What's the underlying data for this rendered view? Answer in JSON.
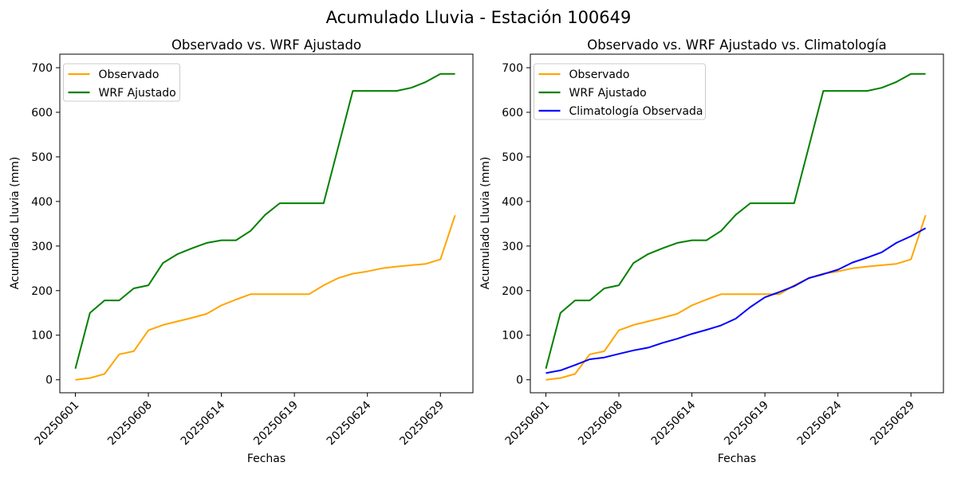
{
  "figure": {
    "suptitle": "Acumulado Lluvia - Estación 100649",
    "background_color": "#ffffff",
    "text_color": "#000000"
  },
  "chart_data": [
    {
      "type": "line",
      "title": "Observado vs. WRF Ajustado",
      "xlabel": "Fechas",
      "ylabel": "Acumulado Lluvia (mm)",
      "ylim": [
        0,
        700
      ],
      "yticks": [
        0,
        100,
        200,
        300,
        400,
        500,
        600,
        700
      ],
      "x_tick_positions": [
        0,
        5,
        10,
        15,
        20,
        25
      ],
      "x_tick_labels": [
        "20250601",
        "20250608",
        "20250614",
        "20250619",
        "20250624",
        "20250629"
      ],
      "grid": false,
      "legend_position": "upper left",
      "dates": [
        "20250601",
        "20250602",
        "20250604",
        "20250606",
        "20250607",
        "20250608",
        "20250609",
        "20250610",
        "20250612",
        "20250613",
        "20250614",
        "20250615",
        "20250616",
        "20250617",
        "20250618",
        "20250619",
        "20250620",
        "20250621",
        "20250622",
        "20250623",
        "20250624",
        "20250625",
        "20250626",
        "20250627",
        "20250628",
        "20250629",
        "20250630"
      ],
      "series": [
        {
          "name": "Observado",
          "color": "#FFA500",
          "values": [
            0,
            4,
            13,
            57,
            64,
            111,
            123,
            131,
            139,
            148,
            167,
            180,
            192,
            192,
            192,
            192,
            192,
            212,
            228,
            238,
            243,
            250,
            254,
            257,
            260,
            270,
            369
          ]
        },
        {
          "name": "WRF Ajustado",
          "color": "#008000",
          "values": [
            25,
            150,
            178,
            178,
            205,
            212,
            262,
            282,
            295,
            307,
            313,
            313,
            334,
            370,
            396,
            396,
            396,
            396,
            522,
            648,
            648,
            648,
            648,
            655,
            668,
            686,
            686
          ]
        }
      ]
    },
    {
      "type": "line",
      "title": "Observado vs. WRF Ajustado vs. Climatología",
      "xlabel": "Fechas",
      "ylabel": "Acumulado Lluvia (mm)",
      "ylim": [
        0,
        700
      ],
      "yticks": [
        0,
        100,
        200,
        300,
        400,
        500,
        600,
        700
      ],
      "x_tick_positions": [
        0,
        5,
        10,
        15,
        20,
        25
      ],
      "x_tick_labels": [
        "20250601",
        "20250608",
        "20250614",
        "20250619",
        "20250624",
        "20250629"
      ],
      "grid": false,
      "legend_position": "upper left",
      "dates": [
        "20250601",
        "20250602",
        "20250604",
        "20250606",
        "20250607",
        "20250608",
        "20250609",
        "20250610",
        "20250612",
        "20250613",
        "20250614",
        "20250615",
        "20250616",
        "20250617",
        "20250618",
        "20250619",
        "20250620",
        "20250621",
        "20250622",
        "20250623",
        "20250624",
        "20250625",
        "20250626",
        "20250627",
        "20250628",
        "20250629",
        "20250630"
      ],
      "series": [
        {
          "name": "Observado",
          "color": "#FFA500",
          "values": [
            0,
            4,
            13,
            57,
            64,
            111,
            123,
            131,
            139,
            148,
            167,
            180,
            192,
            192,
            192,
            192,
            192,
            212,
            228,
            238,
            243,
            250,
            254,
            257,
            260,
            270,
            369
          ]
        },
        {
          "name": "WRF Ajustado",
          "color": "#008000",
          "values": [
            25,
            150,
            178,
            178,
            205,
            212,
            262,
            282,
            295,
            307,
            313,
            313,
            334,
            370,
            396,
            396,
            396,
            396,
            522,
            648,
            648,
            648,
            648,
            655,
            668,
            686,
            686
          ]
        },
        {
          "name": "Climatología Observada",
          "color": "#0000FF",
          "values": [
            15,
            21,
            33,
            46,
            50,
            58,
            66,
            72,
            83,
            92,
            103,
            112,
            122,
            137,
            163,
            185,
            197,
            210,
            228,
            237,
            247,
            263,
            274,
            286,
            307,
            322,
            340
          ]
        }
      ]
    }
  ]
}
